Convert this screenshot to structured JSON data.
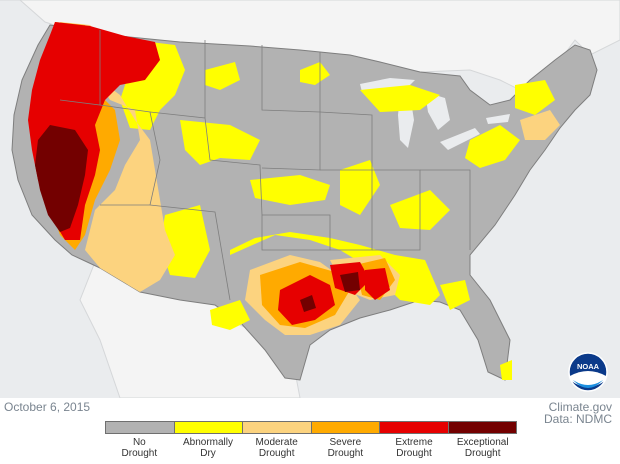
{
  "date": "October 6, 2015",
  "credit": {
    "source": "Climate.gov",
    "data": "Data: NDMC"
  },
  "logo": {
    "text": "NOAA",
    "name": "noaa-logo"
  },
  "colors": {
    "ocean": "#eaecee",
    "land_outside": "#f4f4f4",
    "no_drought": "#b2b2b2",
    "abnormally_dry": "#ffff00",
    "moderate_drought": "#fcd37f",
    "severe_drought": "#ffaa00",
    "extreme_drought": "#e60000",
    "exceptional_drought": "#730000",
    "state_lines": "#7e7e7e"
  },
  "legend": [
    {
      "line1": "No",
      "line2": "Drought",
      "color": "#b2b2b2"
    },
    {
      "line1": "Abnormally",
      "line2": "Dry",
      "color": "#ffff00"
    },
    {
      "line1": "Moderate",
      "line2": "Drought",
      "color": "#fcd37f"
    },
    {
      "line1": "Severe",
      "line2": "Drought",
      "color": "#ffaa00"
    },
    {
      "line1": "Extreme",
      "line2": "Drought",
      "color": "#e60000"
    },
    {
      "line1": "Exceptional",
      "line2": "Drought",
      "color": "#730000"
    }
  ]
}
